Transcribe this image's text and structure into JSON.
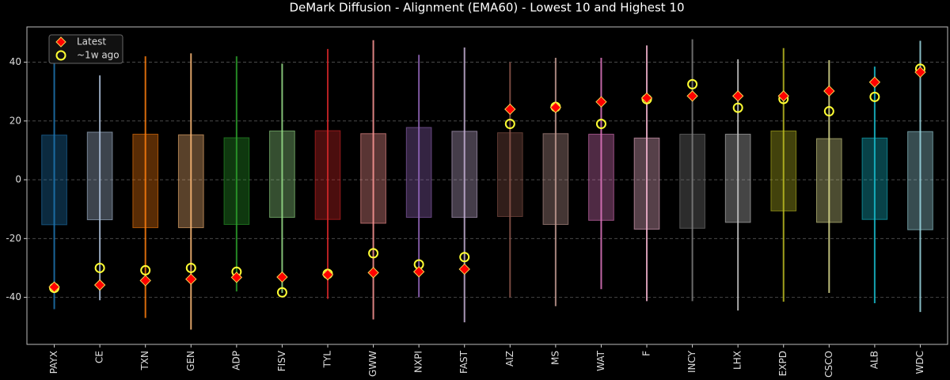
{
  "chart_data": {
    "type": "range",
    "title": "DeMark Diffusion - Alignment (EMA60) - Lowest 10 and Highest 10",
    "categories": [
      "PAYX",
      "CE",
      "TXN",
      "GEN",
      "ADP",
      "FISV",
      "TYL",
      "GWW",
      "NXPI",
      "FAST",
      "AIZ",
      "MS",
      "WAT",
      "F",
      "INCY",
      "LHX",
      "EXPD",
      "CSCO",
      "ALB",
      "WDC"
    ],
    "colors": [
      "#1f77b4",
      "#b0c4de",
      "#ff7f0e",
      "#ffbb78",
      "#2ca02c",
      "#98df8a",
      "#d62728",
      "#ff9896",
      "#9467bd",
      "#c5b0d5",
      "#8c564b",
      "#c49c94",
      "#e377c2",
      "#f7b6d2",
      "#7f7f7f",
      "#c7c7c7",
      "#bcbd22",
      "#dbdb8d",
      "#17becf",
      "#9edae5"
    ],
    "ranges": {
      "low": [
        -44,
        -41,
        -47,
        -51,
        -38,
        -38.5,
        -40.5,
        -47.5,
        -40,
        -48.5,
        -40,
        -43,
        -37.2,
        -41.3,
        -41.3,
        -44.5,
        -41.5,
        -38.5,
        -42,
        -45
      ],
      "high": [
        45,
        35.5,
        42,
        43,
        42,
        39.5,
        44.5,
        47.5,
        42.5,
        45,
        40,
        41.5,
        41.5,
        45.7,
        47.8,
        41,
        44.8,
        40.7,
        38.5,
        47.3
      ]
    },
    "boxes": {
      "low": [
        -15.3,
        -13.6,
        -16.3,
        -16.3,
        -15.2,
        -12.8,
        -13.5,
        -14.8,
        -12.8,
        -12.8,
        -12.5,
        -15.2,
        -13.8,
        -16.8,
        -16.5,
        -14.5,
        -10.6,
        -14.5,
        -13.5,
        -17
      ],
      "high": [
        15.2,
        16.2,
        15.5,
        15.3,
        14.3,
        16.6,
        16.7,
        15.7,
        17.8,
        16.5,
        16,
        15.7,
        15.5,
        14.2,
        15.5,
        15.5,
        16.6,
        14,
        14.2,
        16.4
      ]
    },
    "series": [
      {
        "name": "Latest",
        "color": "#ff0000",
        "marker": "diamond",
        "values": [
          -36.5,
          -35.8,
          -34.3,
          -33.8,
          -33.2,
          -33.1,
          -32.3,
          -31.6,
          -31.3,
          -30.4,
          24,
          24.6,
          26.5,
          27.8,
          28.5,
          28.5,
          28.5,
          30.2,
          33.2,
          36.6
        ]
      },
      {
        "name": "~1w ago",
        "color": "#ffff33",
        "marker": "circle",
        "values": [
          -36.8,
          -30,
          -30.8,
          -30,
          -31.3,
          -38.3,
          -32,
          -25,
          -28.8,
          -26.3,
          19,
          24.8,
          19,
          27.4,
          32.5,
          24.5,
          27.5,
          23.3,
          28.2,
          37.8
        ]
      }
    ],
    "ylim": [
      -56,
      52
    ],
    "yticks": [
      -40,
      -20,
      0,
      20,
      40
    ],
    "grid": true,
    "legend": "upper left"
  }
}
